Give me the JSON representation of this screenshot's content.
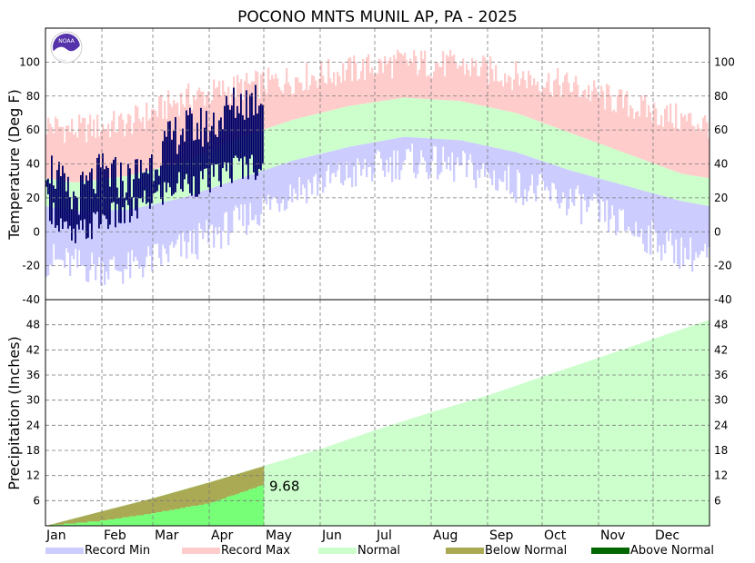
{
  "chart_data": {
    "type": "area",
    "title": "POCONO MNTS MUNIL AP, PA - 2025",
    "months": [
      "Jan",
      "Feb",
      "Mar",
      "Apr",
      "May",
      "Jun",
      "Jul",
      "Aug",
      "Sep",
      "Oct",
      "Nov",
      "Dec"
    ],
    "temperature_panel": {
      "ylabel": "Temperature (Deg F)",
      "ylim": [
        -40,
        120
      ],
      "yticks": [
        -40,
        -20,
        0,
        20,
        40,
        60,
        80,
        100
      ],
      "grid": true,
      "normal_high_by_month": [
        29,
        33,
        41,
        55,
        66,
        74,
        79,
        77,
        70,
        58,
        46,
        34
      ],
      "normal_low_by_month": [
        12,
        13,
        20,
        31,
        42,
        50,
        56,
        54,
        47,
        36,
        27,
        18
      ],
      "record_max_by_month": [
        60,
        64,
        78,
        85,
        90,
        95,
        100,
        98,
        92,
        86,
        75,
        66
      ],
      "record_min_by_month": [
        -20,
        -22,
        -10,
        5,
        25,
        33,
        42,
        38,
        28,
        18,
        3,
        -12
      ],
      "observed_2025": {
        "through": "Apr 30",
        "sample_dates": [
          "Jan 1",
          "Jan 15",
          "Feb 1",
          "Feb 15",
          "Mar 1",
          "Mar 15",
          "Apr 1",
          "Apr 15",
          "Apr 30"
        ],
        "sample_highs": [
          42,
          18,
          35,
          30,
          42,
          60,
          62,
          75,
          80
        ],
        "sample_lows": [
          18,
          -5,
          8,
          10,
          20,
          28,
          30,
          38,
          40
        ]
      }
    },
    "precip_panel": {
      "ylabel": "Precipitation (Inches)",
      "ylim": [
        0,
        54
      ],
      "yticks": [
        6,
        12,
        18,
        24,
        30,
        36,
        42,
        48
      ],
      "grid": true,
      "normal_cumulative_month_end": [
        3.5,
        6.6,
        10.4,
        14.3,
        18.3,
        22.8,
        27.1,
        31.1,
        35.6,
        40.1,
        44.6,
        49.2
      ],
      "observed_cumulative": {
        "month_end_values": [
          1.2,
          3.0,
          5.4,
          9.68
        ],
        "final_label": "9.68"
      }
    },
    "legend": {
      "position": "bottom",
      "entries": [
        {
          "label": "Record Min",
          "color": "#ccccff"
        },
        {
          "label": "Record Max",
          "color": "#ffcccc"
        },
        {
          "label": "Normal",
          "color": "#ccffcc"
        },
        {
          "label": "Below Normal",
          "color": "#aaaa55"
        },
        {
          "label": "Above Normal",
          "color": "#006600"
        }
      ]
    },
    "colors": {
      "observed_bar": "#000066",
      "precip_observed": "#77ff77",
      "precip_normal_fill": "#ccffcc",
      "below_normal": "#aaaa55"
    }
  },
  "logo": {
    "text": "NOAA"
  }
}
